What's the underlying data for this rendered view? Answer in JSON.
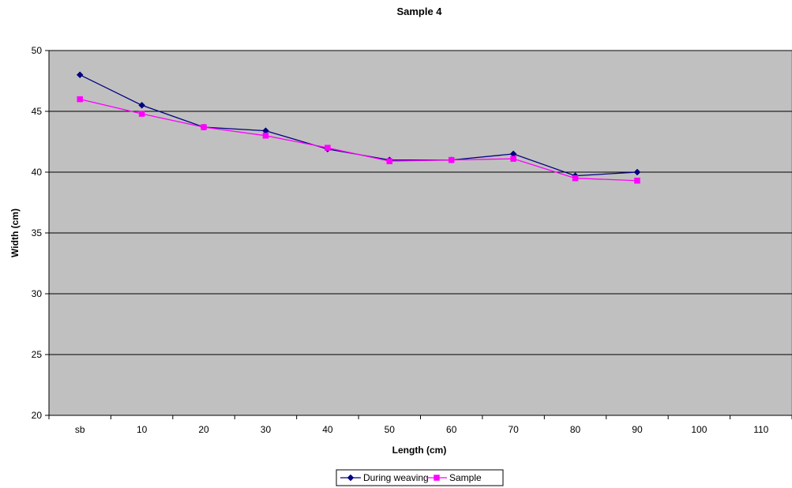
{
  "chart_data": {
    "type": "line",
    "title": "Sample 4",
    "xlabel": "Length (cm)",
    "ylabel": "Width (cm)",
    "categories": [
      "sb",
      "10",
      "20",
      "30",
      "40",
      "50",
      "60",
      "70",
      "80",
      "90",
      "100",
      "110"
    ],
    "ylim": [
      20,
      50
    ],
    "yticks": [
      20,
      25,
      30,
      35,
      40,
      45,
      50
    ],
    "grid": true,
    "legend_position": "bottom",
    "plot_background": "#c0c0c0",
    "series": [
      {
        "name": "During weaving",
        "color": "#000080",
        "marker": "diamond",
        "values": [
          48,
          45.5,
          43.7,
          43.4,
          41.9,
          41,
          41,
          41.5,
          39.7,
          40,
          null,
          null
        ]
      },
      {
        "name": "Sample",
        "color": "#ff00ff",
        "marker": "square",
        "values": [
          46,
          44.8,
          43.7,
          43,
          42,
          40.9,
          41,
          41.1,
          39.5,
          39.3,
          null,
          null
        ]
      }
    ]
  }
}
